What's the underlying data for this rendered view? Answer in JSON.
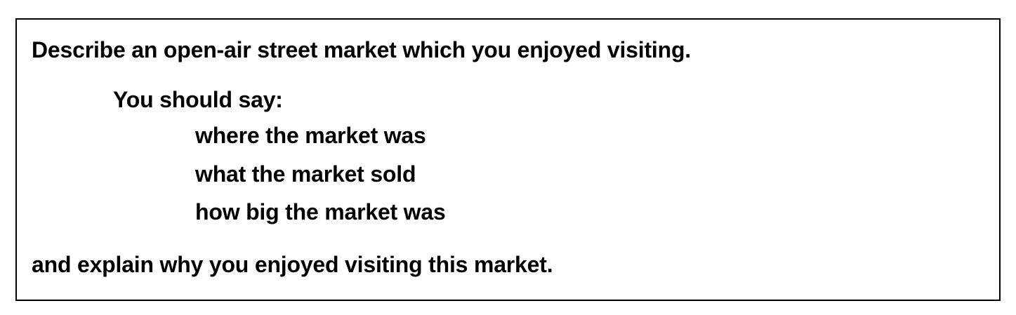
{
  "cue_card": {
    "title": "Describe an open-air street market which you enjoyed visiting.",
    "prompt": "You should say:",
    "points": [
      "where the market was",
      "what the market sold",
      "how big the market was"
    ],
    "closing": "and explain why you enjoyed visiting this market."
  }
}
